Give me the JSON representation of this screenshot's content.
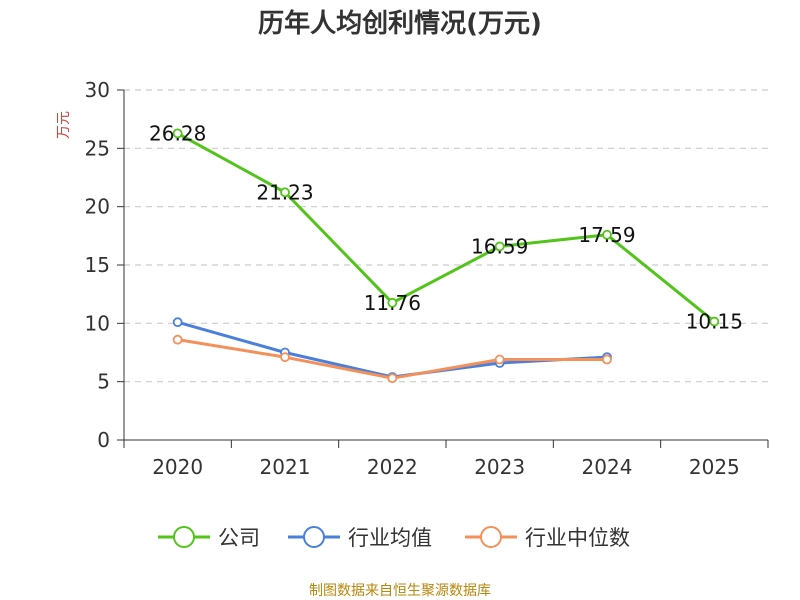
{
  "chart_data": {
    "type": "line",
    "title": "历年人均创利情况(万元)",
    "ylabel": "万元",
    "ylim": [
      0,
      30
    ],
    "yticks": [
      0,
      5,
      10,
      15,
      20,
      25,
      30
    ],
    "categories": [
      "2020",
      "2021",
      "2022",
      "2023",
      "2024",
      "2025"
    ],
    "grid": true,
    "legend_position": "bottom",
    "series": [
      {
        "name": "公司",
        "color": "#52c41a",
        "values": [
          26.28,
          21.23,
          11.76,
          16.59,
          17.59,
          10.15
        ],
        "labels": [
          "26.28",
          "21.23",
          "11.76",
          "16.59",
          "17.59",
          "10.15"
        ]
      },
      {
        "name": "行业均值",
        "color": "#4a7fdc",
        "values": [
          10.1,
          7.5,
          5.4,
          6.6,
          7.1,
          null
        ]
      },
      {
        "name": "行业中位数",
        "color": "#f4905a",
        "values": [
          8.6,
          7.1,
          5.3,
          6.9,
          6.9,
          null
        ]
      }
    ]
  },
  "source": "制图数据来自恒生聚源数据库"
}
